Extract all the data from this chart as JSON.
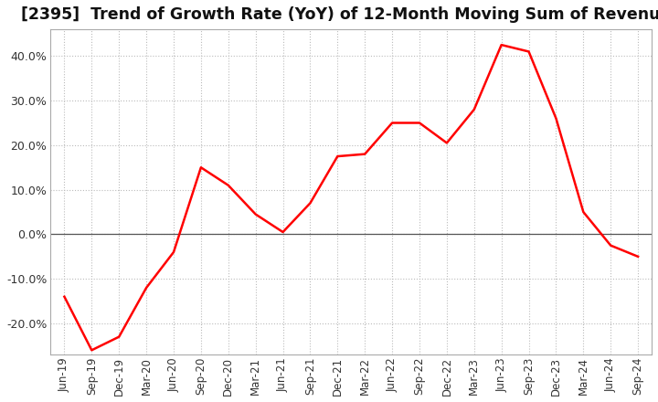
{
  "title": "[2395]  Trend of Growth Rate (YoY) of 12-Month Moving Sum of Revenues",
  "title_fontsize": 12.5,
  "line_color": "#ff0000",
  "background_color": "#ffffff",
  "plot_bg_color": "#ffffff",
  "grid_color": "#bbbbbb",
  "spine_color": "#aaaaaa",
  "ylim": [
    -27,
    46
  ],
  "yticks": [
    -20,
    -10,
    0,
    10,
    20,
    30,
    40
  ],
  "xlabels": [
    "Jun-19",
    "Sep-19",
    "Dec-19",
    "Mar-20",
    "Jun-20",
    "Sep-20",
    "Dec-20",
    "Mar-21",
    "Jun-21",
    "Sep-21",
    "Dec-21",
    "Mar-22",
    "Jun-22",
    "Sep-22",
    "Dec-22",
    "Mar-23",
    "Jun-23",
    "Sep-23",
    "Dec-23",
    "Mar-24",
    "Jun-24",
    "Sep-24"
  ],
  "values": [
    -14.0,
    -26.0,
    -23.0,
    -12.0,
    -4.0,
    15.0,
    11.0,
    4.5,
    0.5,
    7.0,
    17.5,
    18.0,
    25.0,
    25.0,
    20.5,
    28.0,
    42.5,
    41.0,
    26.0,
    5.0,
    -2.5,
    -5.0
  ]
}
